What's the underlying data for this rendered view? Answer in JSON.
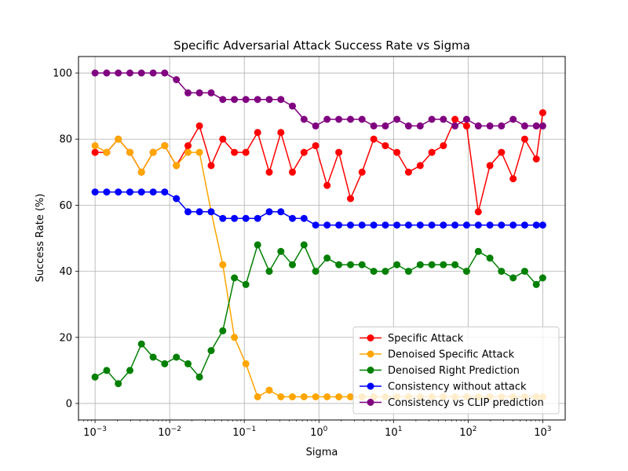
{
  "chart_data": {
    "type": "line",
    "title": "Specific Adversarial Attack Success Rate vs Sigma",
    "xlabel": "Sigma",
    "ylabel": "Success Rate (%)",
    "xscale": "log",
    "xlim": [
      0.0006,
      2000
    ],
    "ylim": [
      -5,
      105
    ],
    "grid": true,
    "legend_position": "lower-right",
    "xticks": [
      {
        "value": 0.001,
        "base": "10",
        "exp": "−3"
      },
      {
        "value": 0.01,
        "base": "10",
        "exp": "−2"
      },
      {
        "value": 0.1,
        "base": "10",
        "exp": "−1"
      },
      {
        "value": 1,
        "base": "10",
        "exp": "0"
      },
      {
        "value": 10,
        "base": "10",
        "exp": "1"
      },
      {
        "value": 100,
        "base": "10",
        "exp": "2"
      },
      {
        "value": 1000,
        "base": "10",
        "exp": "3"
      }
    ],
    "yticks": [
      0,
      20,
      40,
      60,
      80,
      100
    ],
    "x": [
      0.001,
      0.00143,
      0.00205,
      0.00293,
      0.00419,
      0.006,
      0.00858,
      0.0123,
      0.0176,
      0.0251,
      0.036,
      0.0515,
      0.0737,
      0.105,
      0.151,
      0.216,
      0.309,
      0.442,
      0.632,
      0.905,
      1.29,
      1.85,
      2.65,
      3.79,
      5.43,
      7.77,
      11.1,
      15.9,
      22.8,
      32.6,
      46.6,
      66.7,
      95.4,
      137,
      196,
      280,
      401,
      573,
      820,
      1000
    ],
    "series": [
      {
        "name": "Specific Attack",
        "color": "#ff0000",
        "values": [
          76,
          76,
          80,
          76,
          70,
          76,
          78,
          72,
          78,
          84,
          72,
          80,
          76,
          76,
          82,
          70,
          82,
          70,
          76,
          78,
          66,
          76,
          62,
          70,
          80,
          78,
          76,
          70,
          72,
          76,
          78,
          86,
          84,
          58,
          72,
          76,
          68,
          80,
          74,
          88
        ]
      },
      {
        "name": "Denoised Specific Attack",
        "color": "#ffa500",
        "values": [
          78,
          76,
          80,
          76,
          70,
          76,
          78,
          72,
          76,
          76,
          58,
          42,
          20,
          12,
          2,
          4,
          2,
          2,
          2,
          2,
          2,
          2,
          2,
          2,
          2,
          2,
          2,
          2,
          2,
          2,
          2,
          2,
          2,
          2,
          2,
          2,
          2,
          2,
          2,
          2
        ]
      },
      {
        "name": "Denoised Right Prediction",
        "color": "#008000",
        "values": [
          8,
          10,
          6,
          10,
          18,
          14,
          12,
          14,
          12,
          8,
          16,
          22,
          38,
          36,
          48,
          40,
          46,
          42,
          48,
          40,
          44,
          42,
          42,
          42,
          40,
          40,
          42,
          40,
          42,
          42,
          42,
          42,
          40,
          46,
          44,
          40,
          38,
          40,
          36,
          38
        ]
      },
      {
        "name": "Consistency without attack",
        "color": "#0000ff",
        "values": [
          64,
          64,
          64,
          64,
          64,
          64,
          64,
          62,
          58,
          58,
          58,
          56,
          56,
          56,
          56,
          58,
          58,
          56,
          56,
          54,
          54,
          54,
          54,
          54,
          54,
          54,
          54,
          54,
          54,
          54,
          54,
          54,
          54,
          54,
          54,
          54,
          54,
          54,
          54,
          54
        ]
      },
      {
        "name": "Consistency vs CLIP prediction",
        "color": "#800080",
        "values": [
          100,
          100,
          100,
          100,
          100,
          100,
          100,
          98,
          94,
          94,
          94,
          92,
          92,
          92,
          92,
          92,
          92,
          90,
          86,
          84,
          86,
          86,
          86,
          86,
          84,
          84,
          86,
          84,
          84,
          86,
          86,
          84,
          86,
          84,
          84,
          84,
          86,
          84,
          84,
          84
        ]
      }
    ]
  }
}
